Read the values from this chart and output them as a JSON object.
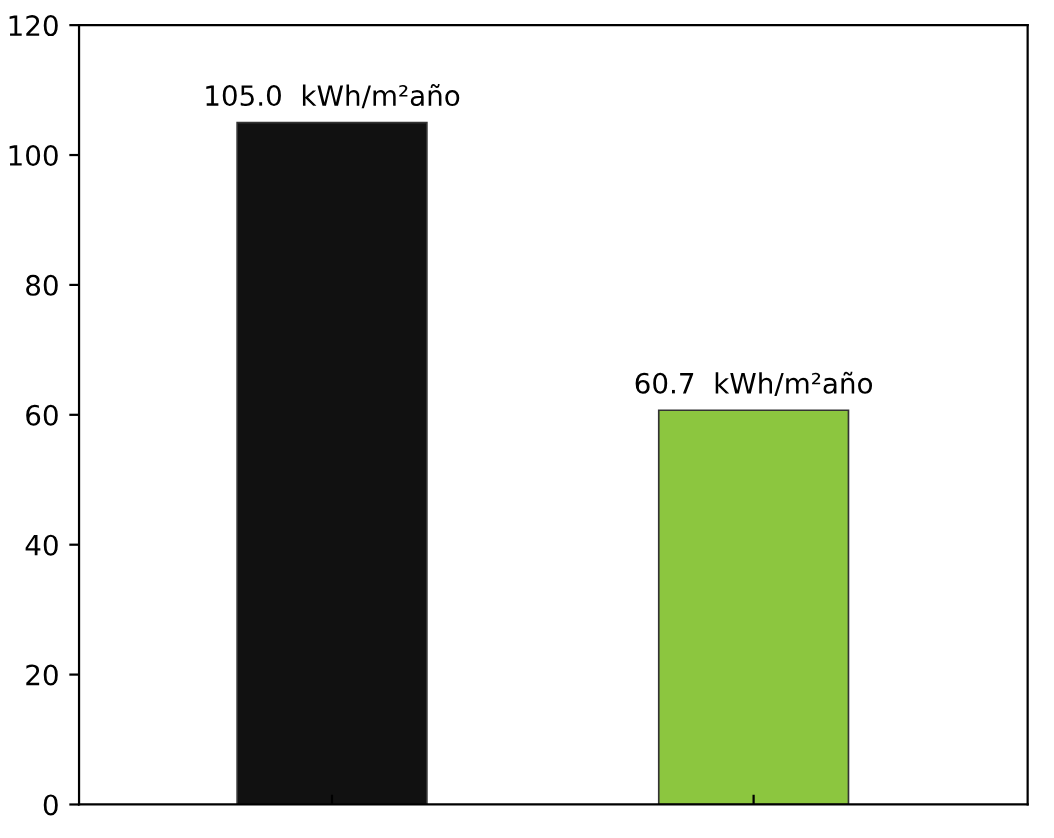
{
  "chart_data": {
    "type": "bar",
    "categories": [
      null,
      null
    ],
    "values": [
      105.0,
      60.7
    ],
    "colors": [
      "#111111",
      "#8cc63f"
    ],
    "value_labels": [
      "105.0  kWh/m²año",
      "60.7  kWh/m²año"
    ],
    "ylim": [
      0,
      120
    ],
    "yticks": [
      0,
      20,
      40,
      60,
      80,
      100,
      120
    ],
    "grid": false,
    "legend": false
  }
}
